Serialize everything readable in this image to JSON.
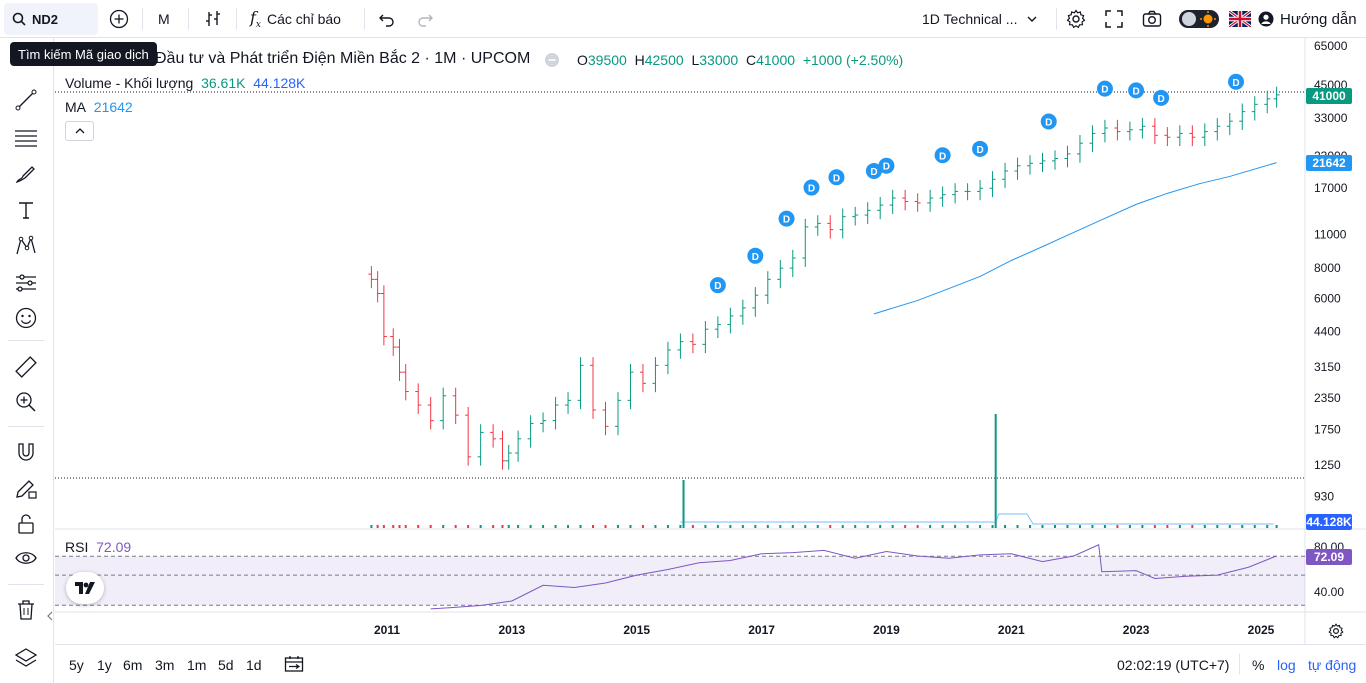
{
  "topbar": {
    "symbol": "ND2",
    "interval": "M",
    "indicators_label": "Các chỉ báo",
    "layout_name": "1D Technical ...",
    "help_label": "Hướng dẫn"
  },
  "tooltip": "Tìm kiếm Mã giao dịch",
  "legend": {
    "title": "Đầu tư và Phát triển Điện Miền Bắc 2 · 1M · UPCOM",
    "o_label": "O",
    "o": "39500",
    "h_label": "H",
    "h": "42500",
    "l_label": "L",
    "l": "33000",
    "c_label": "C",
    "c": "41000",
    "change": "+1000 (+2.50%)",
    "volume_label": "Volume - Khối lượng",
    "volume_value": "36.61K",
    "volume_ma": "44.128K",
    "ma_label": "MA",
    "ma_value": "21642",
    "rsi_label": "RSI",
    "rsi_value": "72.09"
  },
  "price_tags": {
    "last": "41000",
    "ma": "21642",
    "volume": "44.128K",
    "rsi": "72.09"
  },
  "colors": {
    "up": "#089981",
    "down": "#f23645",
    "ma": "#2196f3",
    "rsi": "#7e57c2",
    "dividend": "#2196f3"
  },
  "chart_data": {
    "type": "candlestick",
    "scale": "log",
    "price_ticks": [
      "65000",
      "45000",
      "33000",
      "23000",
      "17000",
      "11000",
      "8000",
      "6000",
      "4400",
      "3150",
      "2350",
      "1750",
      "1250",
      "930"
    ],
    "x_ticks": [
      "2011",
      "2013",
      "2015",
      "2017",
      "2019",
      "2021",
      "2023",
      "2025"
    ],
    "rsi_ticks": [
      "80.00",
      "40.00"
    ],
    "dividend_marker": "D",
    "dividend_years": [
      2016.3,
      2016.9,
      2017.4,
      2017.8,
      2018.2,
      2018.8,
      2019.0,
      2019.9,
      2020.5,
      2021.6,
      2022.5,
      2023.0,
      2023.4,
      2024.6
    ],
    "ma_series": [
      [
        2018.8,
        5200
      ],
      [
        2019.5,
        5900
      ],
      [
        2020.0,
        6600
      ],
      [
        2020.5,
        7400
      ],
      [
        2021.0,
        8600
      ],
      [
        2021.5,
        9800
      ],
      [
        2022.0,
        11200
      ],
      [
        2022.5,
        12800
      ],
      [
        2023.0,
        14600
      ],
      [
        2023.5,
        16200
      ],
      [
        2024.0,
        17700
      ],
      [
        2024.5,
        19000
      ],
      [
        2025.25,
        21642
      ]
    ],
    "close_series": [
      [
        2010.75,
        7200
      ],
      [
        2010.85,
        6300
      ],
      [
        2010.95,
        4200
      ],
      [
        2011.1,
        3800
      ],
      [
        2011.2,
        3000
      ],
      [
        2011.3,
        2500
      ],
      [
        2011.5,
        2200
      ],
      [
        2011.7,
        1900
      ],
      [
        2011.9,
        2400
      ],
      [
        2012.1,
        2000
      ],
      [
        2012.3,
        1350
      ],
      [
        2012.5,
        1700
      ],
      [
        2012.7,
        1600
      ],
      [
        2012.85,
        1300
      ],
      [
        2012.95,
        1400
      ],
      [
        2013.1,
        1600
      ],
      [
        2013.3,
        1850
      ],
      [
        2013.5,
        1900
      ],
      [
        2013.7,
        2200
      ],
      [
        2013.9,
        2300
      ],
      [
        2014.1,
        3200
      ],
      [
        2014.3,
        2100
      ],
      [
        2014.5,
        1800
      ],
      [
        2014.7,
        2300
      ],
      [
        2014.9,
        3000
      ],
      [
        2015.1,
        2700
      ],
      [
        2015.3,
        3200
      ],
      [
        2015.5,
        3700
      ],
      [
        2015.7,
        4000
      ],
      [
        2015.9,
        3900
      ],
      [
        2016.1,
        4500
      ],
      [
        2016.3,
        4700
      ],
      [
        2016.5,
        5100
      ],
      [
        2016.7,
        5500
      ],
      [
        2016.9,
        6200
      ],
      [
        2017.1,
        7200
      ],
      [
        2017.3,
        8000
      ],
      [
        2017.5,
        8800
      ],
      [
        2017.7,
        11800
      ],
      [
        2017.9,
        12200
      ],
      [
        2018.1,
        11500
      ],
      [
        2018.3,
        13000
      ],
      [
        2018.5,
        13200
      ],
      [
        2018.7,
        13800
      ],
      [
        2018.9,
        14500
      ],
      [
        2019.1,
        15500
      ],
      [
        2019.3,
        15000
      ],
      [
        2019.5,
        14800
      ],
      [
        2019.7,
        15500
      ],
      [
        2019.9,
        16000
      ],
      [
        2020.1,
        16500
      ],
      [
        2020.3,
        16500
      ],
      [
        2020.5,
        17000
      ],
      [
        2020.7,
        18500
      ],
      [
        2020.9,
        20000
      ],
      [
        2021.1,
        21000
      ],
      [
        2021.3,
        21500
      ],
      [
        2021.5,
        22000
      ],
      [
        2021.7,
        22500
      ],
      [
        2021.9,
        23500
      ],
      [
        2022.1,
        26000
      ],
      [
        2022.3,
        28500
      ],
      [
        2022.5,
        30000
      ],
      [
        2022.7,
        29000
      ],
      [
        2022.9,
        29500
      ],
      [
        2023.1,
        30500
      ],
      [
        2023.3,
        28000
      ],
      [
        2023.5,
        27500
      ],
      [
        2023.7,
        28500
      ],
      [
        2023.9,
        27500
      ],
      [
        2024.1,
        29000
      ],
      [
        2024.3,
        30500
      ],
      [
        2024.5,
        32000
      ],
      [
        2024.7,
        35000
      ],
      [
        2024.9,
        37500
      ],
      [
        2025.1,
        39500
      ],
      [
        2025.25,
        41000
      ]
    ],
    "volume_spikes": [
      [
        2015.75,
        80
      ],
      [
        2020.75,
        190
      ]
    ],
    "rsi_series": [
      [
        2011.7,
        25
      ],
      [
        2012.0,
        26
      ],
      [
        2012.5,
        28
      ],
      [
        2013.0,
        32
      ],
      [
        2013.5,
        46
      ],
      [
        2014.0,
        44
      ],
      [
        2014.5,
        48
      ],
      [
        2015.0,
        55
      ],
      [
        2015.5,
        60
      ],
      [
        2016.0,
        66
      ],
      [
        2016.5,
        68
      ],
      [
        2017.0,
        74
      ],
      [
        2017.5,
        75
      ],
      [
        2018.0,
        77
      ],
      [
        2018.5,
        70
      ],
      [
        2019.0,
        76
      ],
      [
        2019.5,
        72
      ],
      [
        2020.0,
        70
      ],
      [
        2020.5,
        73
      ],
      [
        2021.0,
        74
      ],
      [
        2021.5,
        67
      ],
      [
        2022.0,
        72
      ],
      [
        2022.4,
        82
      ],
      [
        2022.45,
        58
      ],
      [
        2023.0,
        59
      ],
      [
        2023.3,
        52
      ],
      [
        2023.8,
        54
      ],
      [
        2024.3,
        55
      ],
      [
        2024.8,
        62
      ],
      [
        2025.25,
        72.09
      ]
    ]
  },
  "bottombar": {
    "ranges": [
      "5y",
      "1y",
      "6m",
      "3m",
      "1m",
      "5d",
      "1d"
    ],
    "time": "02:02:19 (UTC+7)",
    "percent": "%",
    "log": "log",
    "auto": "tự động"
  }
}
